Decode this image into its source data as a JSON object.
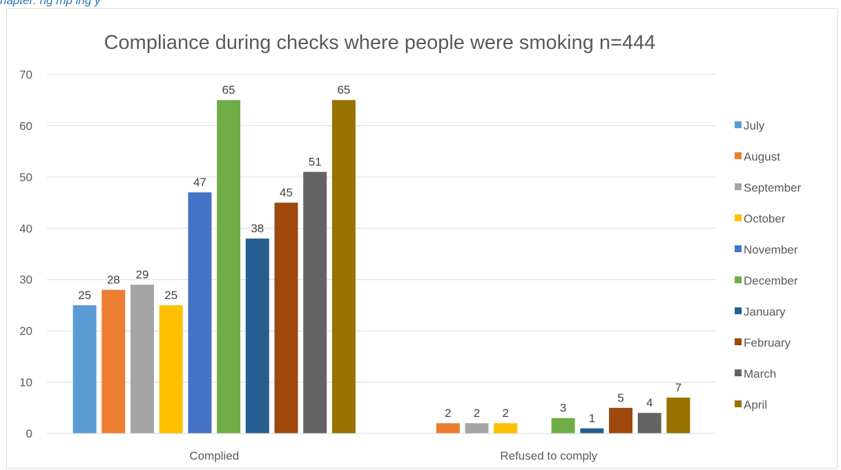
{
  "caption": "hapter:        ng   mp     ing  y",
  "chart_data": {
    "type": "bar",
    "title": "Compliance during checks where people were smoking n=444",
    "categories": [
      "Complied",
      "Refused to comply"
    ],
    "series": [
      {
        "name": "July",
        "color": "#5b9bd5",
        "values": [
          25,
          null
        ]
      },
      {
        "name": "August",
        "color": "#ed7d31",
        "values": [
          28,
          2
        ]
      },
      {
        "name": "September",
        "color": "#a5a5a5",
        "values": [
          29,
          2
        ]
      },
      {
        "name": "October",
        "color": "#ffc000",
        "values": [
          25,
          2
        ]
      },
      {
        "name": "November",
        "color": "#4472c4",
        "values": [
          47,
          null
        ]
      },
      {
        "name": "December",
        "color": "#70ad47",
        "values": [
          65,
          3
        ]
      },
      {
        "name": "January",
        "color": "#255e91",
        "values": [
          38,
          1
        ]
      },
      {
        "name": "February",
        "color": "#9e480e",
        "values": [
          45,
          5
        ]
      },
      {
        "name": "March",
        "color": "#636363",
        "values": [
          51,
          4
        ]
      },
      {
        "name": "April",
        "color": "#997300",
        "values": [
          65,
          7
        ]
      }
    ],
    "ylim": [
      0,
      70
    ],
    "yticks": [
      0,
      10,
      20,
      30,
      40,
      50,
      60,
      70
    ],
    "grid": true,
    "legend": "right",
    "data_labels": true
  }
}
